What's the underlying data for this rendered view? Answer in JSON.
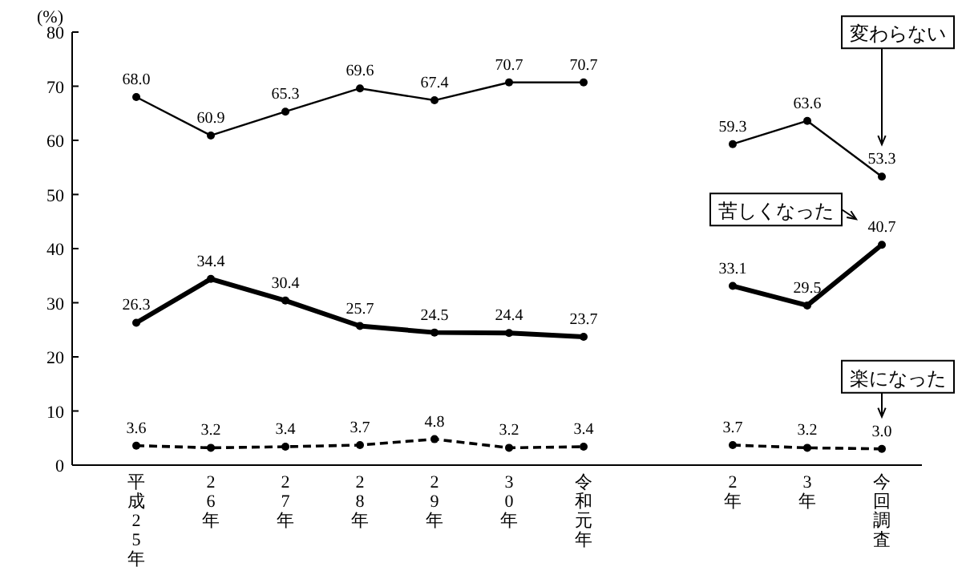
{
  "chart_data": {
    "type": "line",
    "ylabel": "(%)",
    "categories": [
      "平成25年",
      "26年",
      "27年",
      "28年",
      "29年",
      "30年",
      "令和元年",
      null,
      "2年",
      "3年",
      "今回調査"
    ],
    "ylim": [
      0,
      80
    ],
    "yticks": [
      0,
      10,
      20,
      30,
      40,
      50,
      60,
      70,
      80
    ],
    "marker": "circle",
    "grid": false,
    "series": [
      {
        "name": "変わらない",
        "color": "#000000",
        "line_style": "solid",
        "values": [
          68.0,
          60.9,
          65.3,
          69.6,
          67.4,
          70.7,
          70.7,
          null,
          59.3,
          63.6,
          53.3
        ],
        "value_labels": [
          "68.0",
          "60.9",
          "65.3",
          "69.6",
          "67.4",
          "70.7",
          "70.7",
          null,
          "59.3",
          "63.6",
          "53.3"
        ]
      },
      {
        "name": "苦しくなった",
        "color": "#000000",
        "line_style": "solid",
        "values": [
          26.3,
          34.4,
          30.4,
          25.7,
          24.5,
          24.4,
          23.7,
          null,
          33.1,
          29.5,
          40.7
        ],
        "value_labels": [
          "26.3",
          "34.4",
          "30.4",
          "25.7",
          "24.5",
          "24.4",
          "23.7",
          null,
          "33.1",
          "29.5",
          "40.7"
        ]
      },
      {
        "name": "楽になった",
        "color": "#000000",
        "line_style": "dashed",
        "values": [
          3.6,
          3.2,
          3.4,
          3.7,
          4.8,
          3.2,
          3.4,
          null,
          3.7,
          3.2,
          3.0
        ],
        "value_labels": [
          "3.6",
          "3.2",
          "3.4",
          "3.7",
          "4.8",
          "3.2",
          "3.4",
          null,
          "3.7",
          "3.2",
          "3.0"
        ]
      }
    ]
  }
}
